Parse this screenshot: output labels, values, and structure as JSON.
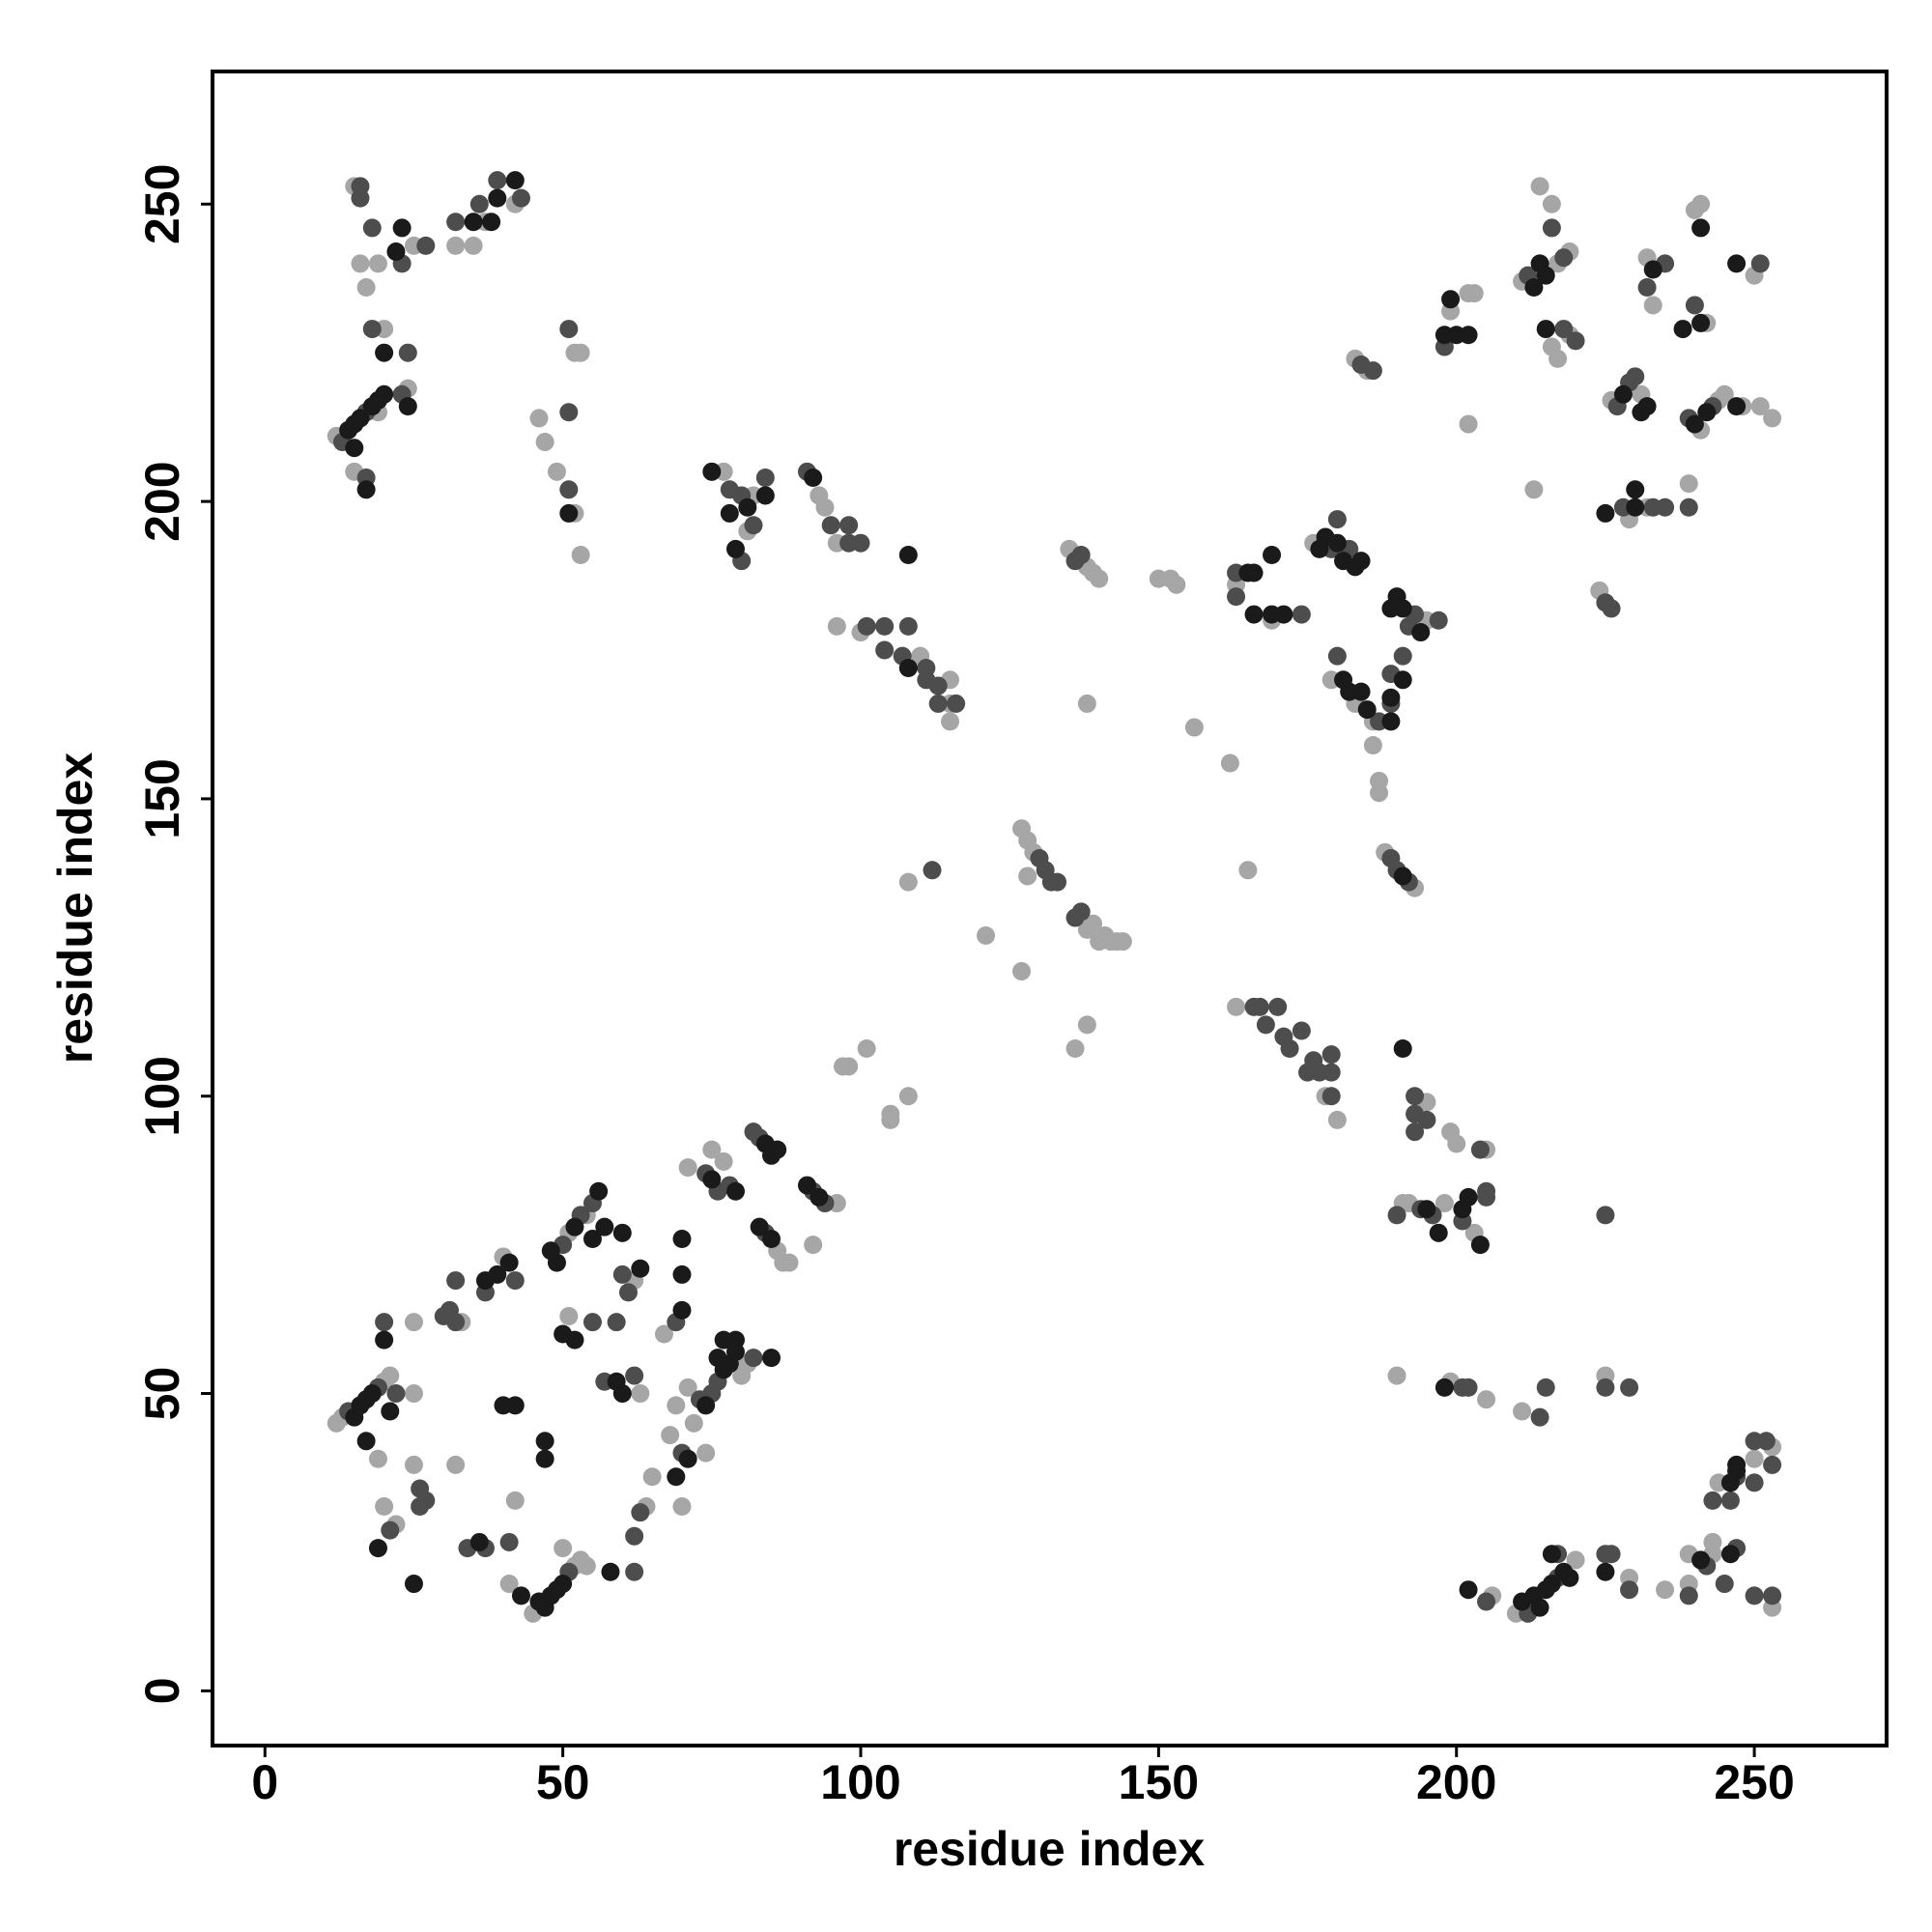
{
  "chart_data": {
    "type": "scatter",
    "xlabel": "residue index",
    "ylabel": "residue index",
    "xlim": [
      -8.8,
      272.2
    ],
    "ylim": [
      -9.2,
      272.3
    ],
    "xticks": [
      0,
      50,
      100,
      150,
      200,
      250
    ],
    "yticks": [
      0,
      50,
      100,
      150,
      200,
      250
    ],
    "grid": false,
    "series": [
      {
        "color": "#a6a6a6",
        "x": [
          12,
          15,
          19,
          20,
          24,
          17,
          16,
          19,
          15,
          25,
          32,
          35,
          37,
          42,
          46,
          47,
          49,
          52,
          53,
          52,
          53,
          77,
          81,
          82,
          93,
          94,
          96,
          96,
          100,
          110,
          115,
          115,
          115,
          135,
          138,
          139,
          140,
          138,
          150,
          152,
          153,
          156,
          162,
          163,
          169,
          176,
          183,
          179,
          186,
          195,
          186,
          187,
          187,
          183,
          185,
          199,
          202,
          203,
          202,
          211,
          213,
          214,
          216,
          216,
          217,
          219,
          217,
          219,
          224,
          226,
          231,
          229,
          232,
          233,
          242,
          241,
          240,
          241,
          244,
          245,
          239,
          248,
          251,
          253,
          250,
          232,
          12,
          13,
          20,
          21,
          19,
          25,
          25,
          20,
          22,
          25,
          33,
          32,
          40,
          42,
          41,
          45,
          52,
          53,
          54,
          50,
          51,
          54,
          62,
          51,
          64,
          65,
          63,
          67,
          71,
          80,
          81,
          68,
          72,
          74,
          70,
          69,
          71,
          77,
          75,
          86,
          87,
          88,
          92,
          96,
          97,
          98,
          101,
          105,
          105,
          108,
          108,
          121,
          127,
          127,
          128,
          129,
          128,
          138,
          139,
          140,
          141,
          142,
          143,
          144,
          138,
          136,
          165,
          163,
          178,
          180,
          188,
          193,
          195,
          199,
          200,
          205,
          191,
          192,
          198,
          203,
          190,
          199,
          205,
          211,
          225,
          206,
          210,
          220,
          229,
          235,
          239,
          243,
          243,
          239,
          244,
          250,
          253,
          253
        ],
        "values": [
          211,
          205,
          215,
          229,
          219,
          236,
          240,
          240,
          253,
          243,
          243,
          243,
          247,
          250,
          214,
          210,
          205,
          198,
          191,
          225,
          225,
          205,
          195,
          201,
          201,
          199,
          193,
          179,
          178,
          174,
          170,
          166,
          163,
          192,
          189,
          188,
          187,
          166,
          187,
          187,
          186,
          162,
          156,
          186,
          180,
          193,
          166,
          170,
          163,
          180,
          159,
          153,
          151,
          224,
          222,
          232,
          235,
          235,
          213,
          237,
          202,
          253,
          250,
          226,
          224,
          228,
          240,
          242,
          185,
          217,
          218,
          197,
          241,
          233,
          230,
          250,
          249,
          212,
          217,
          218,
          203,
          216,
          216,
          214,
          238,
          199,
          45,
          46,
          52,
          53,
          39,
          50,
          38,
          31,
          28,
          62,
          62,
          38,
          73,
          32,
          18,
          13,
          21,
          22,
          21,
          24,
          77,
          80,
          69,
          63,
          31,
          36,
          50,
          60,
          51,
          53,
          55,
          43,
          45,
          40,
          31,
          48,
          88,
          89,
          91,
          74,
          72,
          72,
          75,
          82,
          105,
          105,
          108,
          97,
          96,
          100,
          136,
          127,
          121,
          145,
          143,
          141,
          137,
          128,
          129,
          126,
          127,
          126,
          126,
          126,
          112,
          108,
          138,
          115,
          100,
          96,
          141,
          135,
          99,
          94,
          92,
          91,
          82,
          82,
          82,
          77,
          53,
          52,
          49,
          47,
          53,
          16,
          13,
          22,
          19,
          17,
          18,
          23,
          25,
          23,
          35,
          39,
          41,
          14
        ]
      },
      {
        "color": "#4d4d4d",
        "x": [
          13,
          17,
          17,
          18,
          24,
          23,
          18,
          16,
          16,
          23,
          27,
          32,
          36,
          39,
          43,
          51,
          51,
          51,
          78,
          80,
          80,
          82,
          84,
          91,
          95,
          98,
          98,
          100,
          101,
          104,
          104,
          107,
          108,
          111,
          111,
          113,
          113,
          116,
          136,
          137,
          163,
          163,
          174,
          179,
          180,
          182,
          180,
          187,
          189,
          189,
          192,
          193,
          197,
          191,
          184,
          186,
          198,
          212,
          216,
          218,
          220,
          218,
          225,
          226,
          227,
          229,
          230,
          228,
          232,
          235,
          240,
          239,
          243,
          239,
          251,
          235,
          233,
          14,
          19,
          22,
          20,
          26,
          26,
          27,
          21,
          30,
          31,
          32,
          32,
          34,
          37,
          37,
          42,
          41,
          51,
          50,
          53,
          55,
          60,
          61,
          57,
          59,
          55,
          62,
          62,
          63,
          62,
          69,
          73,
          75,
          76,
          82,
          70,
          74,
          76,
          78,
          82,
          83,
          84,
          92,
          94,
          112,
          130,
          131,
          132,
          133,
          136,
          137,
          166,
          167,
          168,
          170,
          171,
          172,
          174,
          175,
          176,
          177,
          179,
          179,
          179,
          189,
          190,
          192,
          193,
          193,
          193,
          195,
          204,
          190,
          194,
          196,
          201,
          205,
          205,
          225,
          201,
          202,
          214,
          215,
          225,
          229,
          205,
          212,
          217,
          217,
          225,
          226,
          229,
          239,
          242,
          247,
          245,
          243,
          246,
          247,
          250,
          250,
          252,
          253,
          250,
          253
        ],
        "values": [
          210,
          215,
          204,
          229,
          225,
          218,
          246,
          251,
          253,
          240,
          243,
          247,
          250,
          254,
          251,
          202,
          215,
          229,
          202,
          201,
          190,
          196,
          204,
          205,
          196,
          196,
          193,
          193,
          179,
          179,
          175,
          174,
          179,
          172,
          170,
          169,
          166,
          166,
          190,
          191,
          188,
          184,
          181,
          192,
          197,
          192,
          174,
          163,
          166,
          171,
          179,
          181,
          180,
          174,
          223,
          222,
          226,
          238,
          246,
          229,
          227,
          241,
          183,
          182,
          216,
          220,
          221,
          199,
          236,
          240,
          233,
          214,
          216,
          199,
          240,
          199,
          199,
          47,
          51,
          50,
          62,
          34,
          31,
          32,
          27,
          63,
          64,
          62,
          69,
          24,
          24,
          67,
          69,
          25,
          20,
          75,
          80,
          82,
          70,
          67,
          52,
          62,
          62,
          20,
          26,
          30,
          53,
          62,
          49,
          50,
          52,
          56,
          40,
          87,
          84,
          85,
          94,
          93,
          77,
          84,
          82,
          138,
          140,
          138,
          136,
          136,
          130,
          131,
          115,
          115,
          112,
          115,
          110,
          108,
          111,
          104,
          106,
          104,
          107,
          100,
          104,
          140,
          138,
          136,
          97,
          100,
          94,
          96,
          91,
          80,
          81,
          80,
          79,
          83,
          84,
          80,
          51,
          51,
          46,
          51,
          51,
          51,
          15,
          13,
          19,
          23,
          23,
          23,
          17,
          16,
          21,
          24,
          18,
          32,
          32,
          36,
          35,
          42,
          42,
          38,
          16,
          16
        ]
      },
      {
        "color": "#1a1a1a",
        "x": [
          14,
          15,
          16,
          18,
          19,
          20,
          15,
          17,
          20,
          24,
          23,
          22,
          35,
          38,
          39,
          42,
          51,
          75,
          78,
          81,
          84,
          79,
          92,
          108,
          108,
          165,
          166,
          166,
          169,
          169,
          171,
          177,
          178,
          180,
          181,
          183,
          184,
          181,
          182,
          184,
          185,
          189,
          189,
          189,
          190,
          191,
          194,
          191,
          198,
          200,
          199,
          202,
          213,
          214,
          215,
          215,
          225,
          228,
          231,
          230,
          230,
          232,
          233,
          238,
          241,
          241,
          240,
          242,
          247,
          247,
          15,
          16,
          17,
          18,
          21,
          17,
          20,
          19,
          25,
          36,
          37,
          39,
          41,
          40,
          42,
          43,
          46,
          47,
          48,
          49,
          50,
          47,
          47,
          48,
          49,
          52,
          55,
          56,
          57,
          60,
          63,
          59,
          60,
          50,
          52,
          58,
          70,
          70,
          70,
          74,
          77,
          78,
          79,
          85,
          76,
          77,
          79,
          71,
          69,
          75,
          79,
          84,
          85,
          86,
          83,
          85,
          91,
          93,
          191,
          191,
          195,
          197,
          202,
          201,
          204,
          198,
          202,
          211,
          213,
          214,
          215,
          216,
          218,
          219,
          216,
          225,
          246,
          241,
          247,
          246,
          247
        ],
        "values": [
          212,
          213,
          214,
          216,
          217,
          218,
          209,
          202,
          225,
          216,
          246,
          242,
          247,
          247,
          251,
          254,
          198,
          205,
          198,
          199,
          201,
          192,
          204,
          191,
          172,
          188,
          188,
          181,
          191,
          181,
          181,
          192,
          194,
          193,
          190,
          189,
          190,
          170,
          168,
          168,
          165,
          167,
          163,
          182,
          184,
          182,
          178,
          170,
          228,
          228,
          234,
          228,
          236,
          240,
          238,
          229,
          198,
          218,
          215,
          199,
          202,
          216,
          239,
          229,
          230,
          246,
          213,
          215,
          216,
          240,
          46,
          48,
          49,
          50,
          47,
          42,
          59,
          24,
          18,
          25,
          69,
          70,
          72,
          48,
          48,
          16,
          15,
          14,
          16,
          17,
          18,
          42,
          39,
          74,
          72,
          78,
          76,
          84,
          78,
          77,
          71,
          52,
          50,
          60,
          59,
          20,
          64,
          76,
          70,
          48,
          54,
          55,
          57,
          56,
          56,
          59,
          59,
          39,
          36,
          86,
          84,
          92,
          90,
          91,
          78,
          76,
          85,
          83,
          137,
          108,
          81,
          77,
          83,
          81,
          75,
          51,
          17,
          15,
          16,
          14,
          17,
          18,
          20,
          19,
          23,
          20,
          23,
          22,
          37,
          35,
          38
        ]
      }
    ]
  }
}
